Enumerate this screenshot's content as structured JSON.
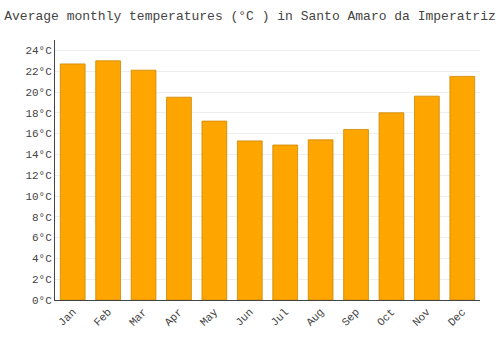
{
  "chart_data": {
    "type": "bar",
    "title": "Average monthly temperatures (°C ) in Santo Amaro da Imperatriz",
    "categories": [
      "Jan",
      "Feb",
      "Mar",
      "Apr",
      "May",
      "Jun",
      "Jul",
      "Aug",
      "Sep",
      "Oct",
      "Nov",
      "Dec"
    ],
    "values": [
      22.7,
      23.0,
      22.1,
      19.5,
      17.2,
      15.3,
      14.9,
      15.4,
      16.4,
      18.0,
      19.6,
      21.5
    ],
    "color": "#FFA500",
    "ylim": [
      0,
      25
    ],
    "yticks": [
      {
        "value": 0,
        "label": "0°C"
      },
      {
        "value": 2,
        "label": "2°C"
      },
      {
        "value": 4,
        "label": "4°C"
      },
      {
        "value": 6,
        "label": "6°C"
      },
      {
        "value": 8,
        "label": "8°C"
      },
      {
        "value": 10,
        "label": "10°C"
      },
      {
        "value": 12,
        "label": "12°C"
      },
      {
        "value": 14,
        "label": "14°C"
      },
      {
        "value": 16,
        "label": "16°C"
      },
      {
        "value": 18,
        "label": "18°C"
      },
      {
        "value": 20,
        "label": "20°C"
      },
      {
        "value": 22,
        "label": "22°C"
      },
      {
        "value": 24,
        "label": "24°C"
      }
    ],
    "grid": true
  }
}
